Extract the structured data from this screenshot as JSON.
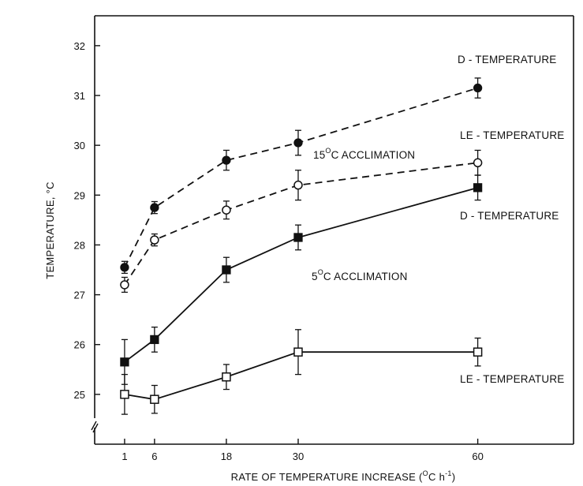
{
  "chart_data": {
    "type": "line",
    "xlabel_parts": [
      "RATE OF TEMPERATURE INCREASE (",
      "O",
      "C h",
      "-1",
      ")"
    ],
    "ylabel": "TEMPERATURE, °C",
    "x_ticks": [
      1,
      6,
      18,
      30,
      60
    ],
    "y_ticks": [
      25,
      26,
      27,
      28,
      29,
      30,
      31,
      32
    ],
    "xlim": [
      -4,
      76
    ],
    "ylim": [
      24,
      32.6
    ],
    "grid": false,
    "x": [
      1,
      6,
      18,
      30,
      60
    ],
    "series": [
      {
        "name": "D - TEMPERATURE",
        "group": "15 C acclimation",
        "style": "dashed",
        "marker": "filled-circle",
        "values": [
          27.55,
          28.75,
          29.7,
          30.05,
          31.15
        ],
        "errors": [
          0.12,
          0.12,
          0.2,
          0.25,
          0.2
        ]
      },
      {
        "name": "LE - TEMPERATURE",
        "group": "15 C acclimation",
        "style": "dashed",
        "marker": "open-circle",
        "values": [
          27.2,
          28.1,
          28.7,
          29.2,
          29.65
        ],
        "errors": [
          0.15,
          0.12,
          0.18,
          0.3,
          0.25
        ]
      },
      {
        "name": "D - TEMPERATURE",
        "group": "5 C acclimation",
        "style": "solid",
        "marker": "filled-square",
        "values": [
          25.65,
          26.1,
          27.5,
          28.15,
          29.15
        ],
        "errors": [
          0.45,
          0.25,
          0.25,
          0.25,
          0.25
        ]
      },
      {
        "name": "LE - TEMPERATURE",
        "group": "5 C acclimation",
        "style": "solid",
        "marker": "open-square",
        "values": [
          25.0,
          24.9,
          25.35,
          25.85,
          25.85
        ],
        "errors": [
          0.4,
          0.28,
          0.25,
          0.45,
          0.28
        ]
      }
    ],
    "annotations": {
      "acclim_15": [
        "15",
        "O",
        "C ACCLIMATION"
      ],
      "acclim_5": [
        "5",
        "O",
        "C ACCLIMATION"
      ]
    }
  }
}
